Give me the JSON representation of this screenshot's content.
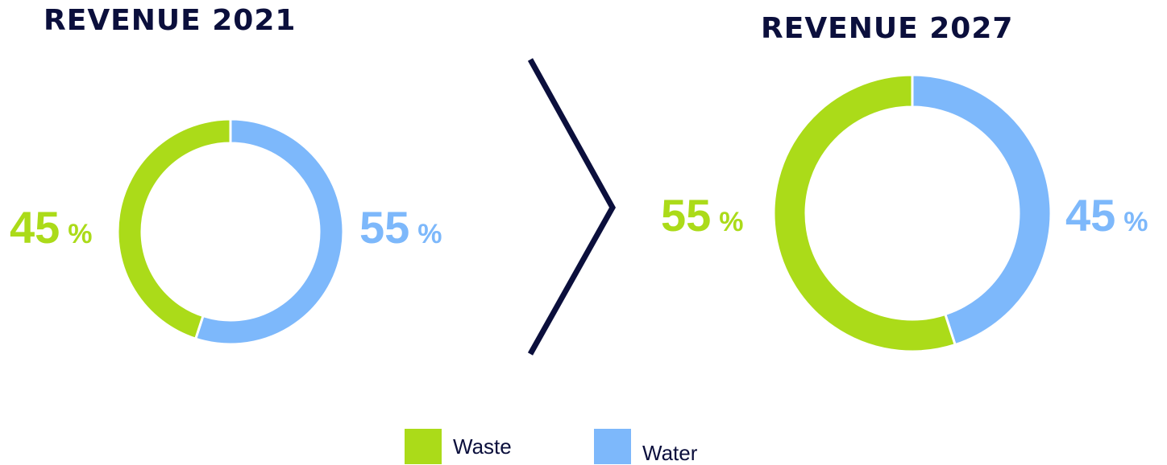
{
  "colors": {
    "waste": "#abdb19",
    "water": "#7db8fb",
    "title": "#0b0f3c",
    "divider": "#0b0f3c"
  },
  "chart_data": [
    {
      "type": "pie",
      "title": "REVENUE 2021",
      "slices": [
        {
          "name": "Waste",
          "value": 45,
          "label": "45",
          "unit": "%"
        },
        {
          "name": "Water",
          "value": 55,
          "label": "55",
          "unit": "%"
        }
      ],
      "legend": "bottom-center"
    },
    {
      "type": "pie",
      "title": "REVENUE 2027",
      "slices": [
        {
          "name": "Waste",
          "value": 55,
          "label": "55",
          "unit": "%"
        },
        {
          "name": "Water",
          "value": 45,
          "label": "45",
          "unit": "%"
        }
      ],
      "legend": "bottom-center"
    }
  ],
  "legend": [
    {
      "name": "Waste",
      "color": "#abdb19"
    },
    {
      "name": "Water",
      "color": "#7db8fb"
    }
  ]
}
